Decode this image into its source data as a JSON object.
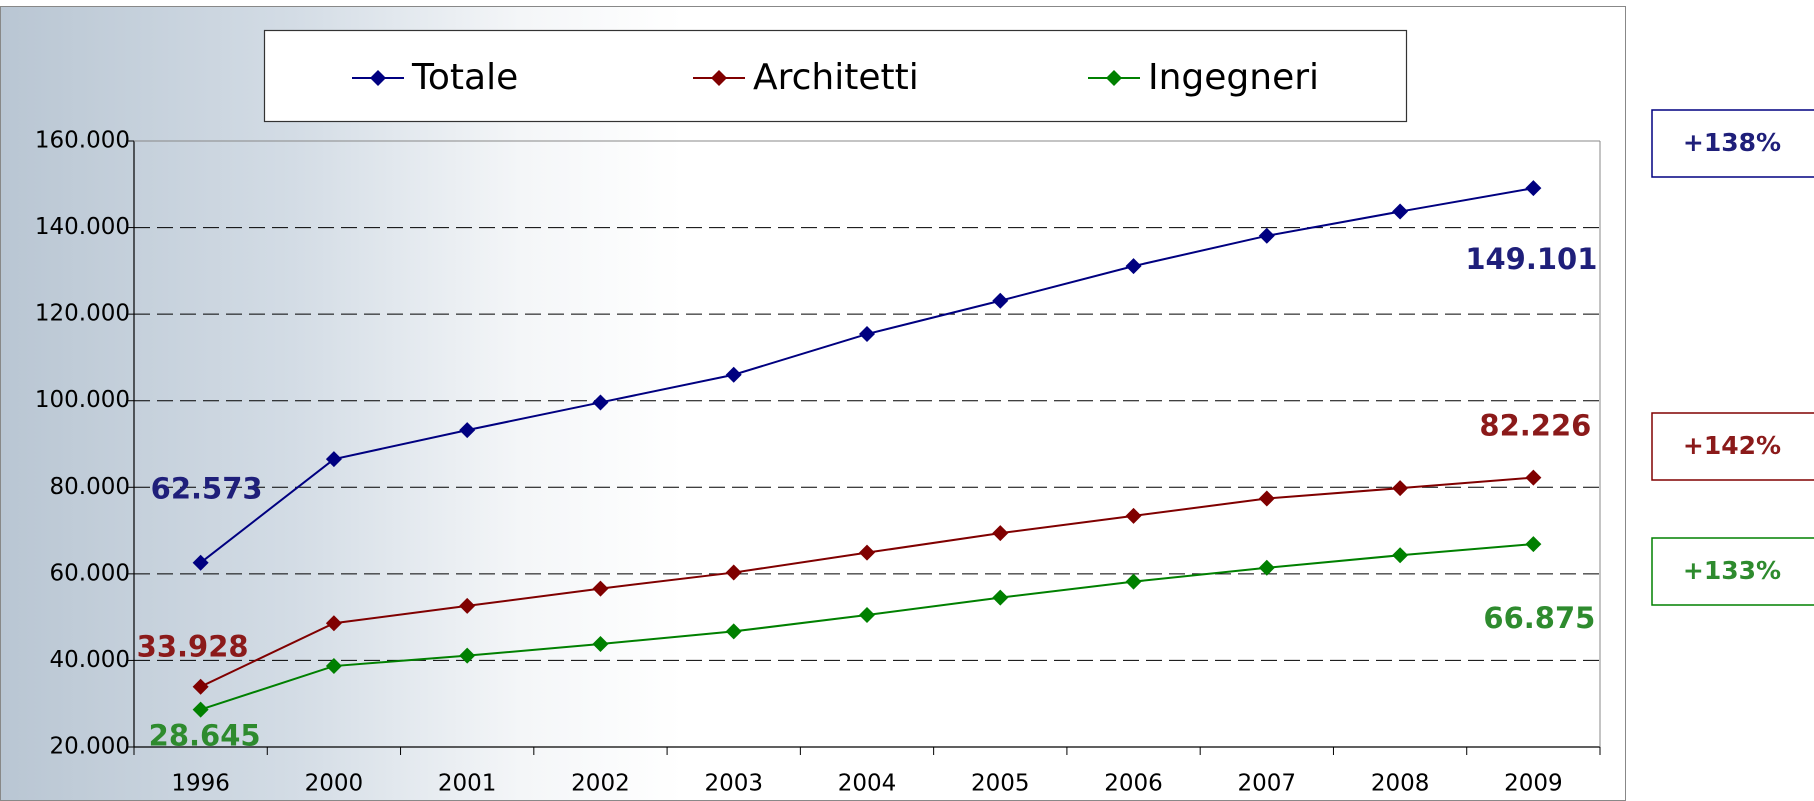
{
  "chart_data": {
    "type": "line",
    "categories": [
      "1996",
      "2000",
      "2001",
      "2002",
      "2003",
      "2004",
      "2005",
      "2006",
      "2007",
      "2008",
      "2009"
    ],
    "series": [
      {
        "name": "Totale",
        "color": "#000080",
        "values": [
          62573,
          86500,
          93200,
          99600,
          106000,
          115400,
          123100,
          131100,
          138100,
          143700,
          149101
        ],
        "value_labels": [
          "62.573",
          null,
          null,
          null,
          null,
          null,
          null,
          null,
          null,
          null,
          "149.101"
        ],
        "change_label": "+138%",
        "label_color": "#1f1f7a"
      },
      {
        "name": "Architetti",
        "color": "#800000",
        "values": [
          33928,
          48600,
          52600,
          56600,
          60300,
          64900,
          69400,
          73400,
          77400,
          79800,
          82226
        ],
        "value_labels": [
          "33.928",
          null,
          null,
          null,
          null,
          null,
          null,
          null,
          null,
          null,
          "82.226"
        ],
        "change_label": "+142%",
        "label_color": "#8b1a1a"
      },
      {
        "name": "Ingegneri",
        "color": "#008000",
        "values": [
          28645,
          38700,
          41100,
          43800,
          46700,
          50500,
          54500,
          58200,
          61400,
          64300,
          66875
        ],
        "value_labels": [
          "28.645",
          null,
          null,
          null,
          null,
          null,
          null,
          null,
          null,
          null,
          "66.875"
        ],
        "change_label": "+133%",
        "label_color": "#2e8b2e"
      }
    ],
    "ylim": [
      20000,
      160000
    ],
    "yticks": [
      {
        "value": 20000,
        "label": "20.000"
      },
      {
        "value": 40000,
        "label": "40.000"
      },
      {
        "value": 60000,
        "label": "60.000"
      },
      {
        "value": 80000,
        "label": "80.000"
      },
      {
        "value": 100000,
        "label": "100.000"
      },
      {
        "value": 120000,
        "label": "120.000"
      },
      {
        "value": 140000,
        "label": "140.000"
      },
      {
        "value": 160000,
        "label": "160.000"
      }
    ],
    "grid": true,
    "legend": "top"
  }
}
